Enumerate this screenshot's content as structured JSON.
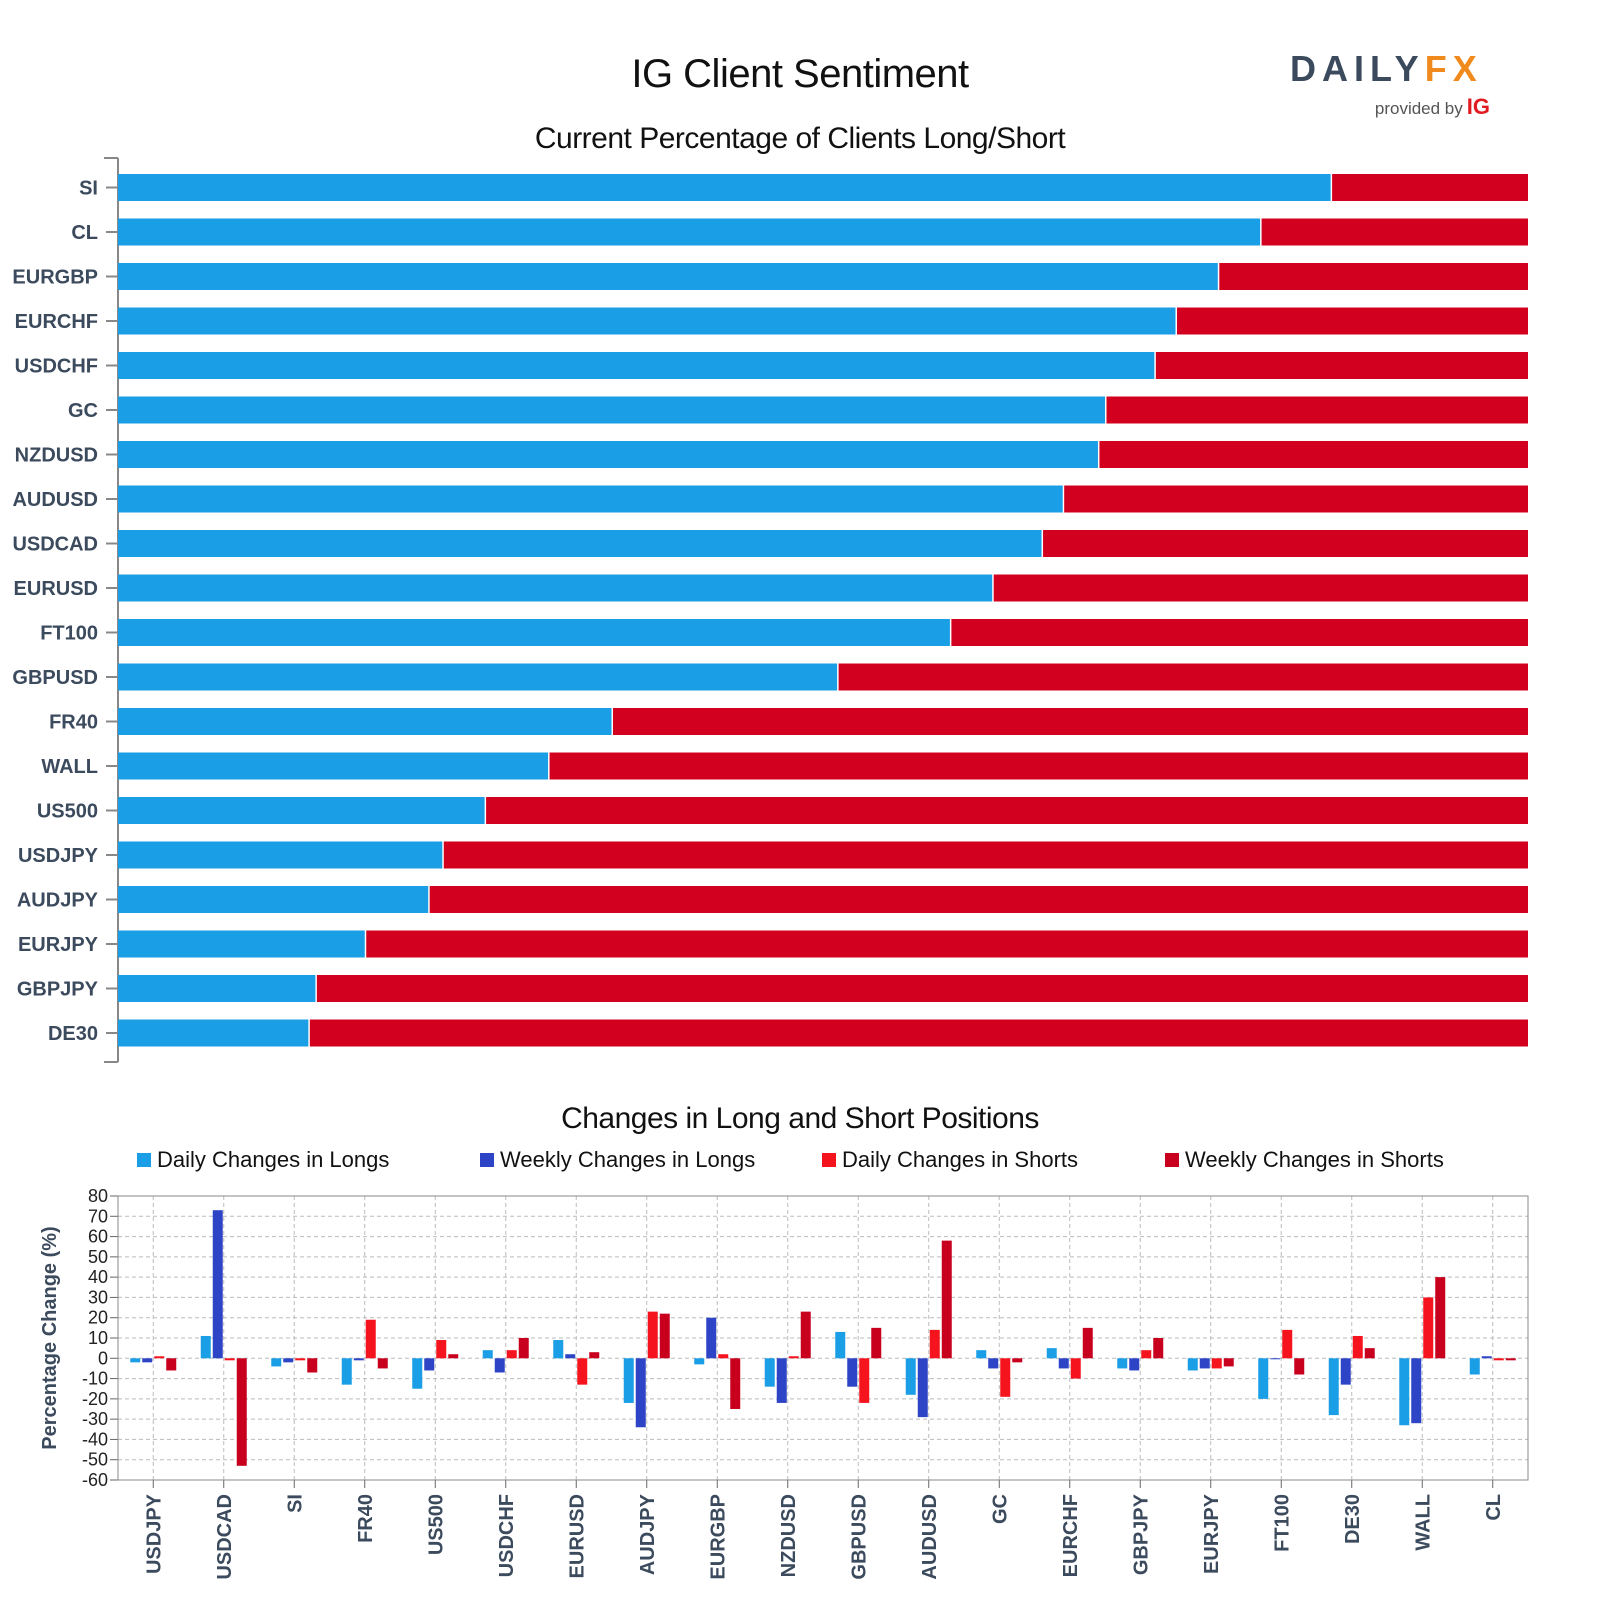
{
  "header": {
    "title": "IG Client Sentiment",
    "logo_main_a": "DAILY",
    "logo_main_b": "FX",
    "logo_sub": "provided by",
    "logo_ig": "IG"
  },
  "colors": {
    "long": "#1a9ee6",
    "short": "#d2001e",
    "daily_longs": "#1a9ee6",
    "weekly_longs": "#2d44c6",
    "daily_shorts": "#f5141e",
    "weekly_shorts": "#c8001e"
  },
  "chart_data": [
    {
      "type": "bar",
      "orientation": "horizontal",
      "stacked": true,
      "title": "Current Percentage of Clients Long/Short",
      "categories": [
        "SI",
        "CL",
        "EURGBP",
        "EURCHF",
        "USDCHF",
        "GC",
        "NZDUSD",
        "AUDUSD",
        "USDCAD",
        "EURUSD",
        "FT100",
        "GBPUSD",
        "FR40",
        "WALL",
        "US500",
        "USDJPY",
        "AUDJPY",
        "EURJPY",
        "GBPJPY",
        "DE30"
      ],
      "series": [
        {
          "values": [
            86,
            81,
            78,
            75,
            73.5,
            70,
            69.5,
            67,
            65.5,
            62,
            59,
            51,
            35,
            30.5,
            26,
            23,
            22,
            17.5,
            14,
            13.5
          ]
        },
        {
          "values": [
            14,
            19,
            22,
            25,
            26.5,
            30,
            30.5,
            33,
            34.5,
            38,
            41,
            49,
            65,
            69.5,
            74,
            77,
            78,
            82.5,
            86,
            86.5
          ]
        }
      ],
      "xlim": [
        0,
        100
      ]
    },
    {
      "type": "bar",
      "title": "Changes in Long and Short Positions",
      "ylabel": "Percentage Change (%)",
      "ylim": [
        -60,
        80
      ],
      "yticks": [
        80,
        70,
        60,
        50,
        40,
        30,
        20,
        10,
        0,
        -10,
        -20,
        -30,
        -40,
        -50,
        -60
      ],
      "grid": true,
      "legend_position": "top",
      "categories": [
        "USDJPY",
        "USDCAD",
        "SI",
        "FR40",
        "US500",
        "USDCHF",
        "EURUSD",
        "AUDJPY",
        "EURGBP",
        "NZDUSD",
        "GBPUSD",
        "AUDUSD",
        "GC",
        "EURCHF",
        "GBPJPY",
        "EURJPY",
        "FT100",
        "DE30",
        "WALL",
        "CL"
      ],
      "series": [
        {
          "name": "Daily Changes in Longs",
          "values": [
            -2,
            11,
            -4,
            -13,
            -15,
            4,
            9,
            -22,
            -3,
            -14,
            13,
            -18,
            4,
            5,
            -5,
            -6,
            -20,
            -28,
            -33,
            -8
          ]
        },
        {
          "name": "Weekly Changes in Longs",
          "values": [
            -2,
            73,
            -2,
            -1,
            -6,
            -7,
            2,
            -34,
            20,
            -22,
            -14,
            -29,
            -5,
            -5,
            -6,
            -5,
            0,
            -13,
            -32,
            1
          ]
        },
        {
          "name": "Daily Changes in Shorts",
          "values": [
            1,
            -1,
            -1,
            19,
            9,
            4,
            -13,
            23,
            2,
            1,
            -22,
            14,
            -19,
            -10,
            4,
            -5,
            14,
            11,
            30,
            -1
          ]
        },
        {
          "name": "Weekly Changes in Shorts",
          "values": [
            -6,
            -53,
            -7,
            -5,
            2,
            10,
            3,
            22,
            -25,
            23,
            15,
            58,
            -2,
            15,
            10,
            -4,
            -8,
            5,
            40,
            -1
          ]
        }
      ]
    }
  ]
}
